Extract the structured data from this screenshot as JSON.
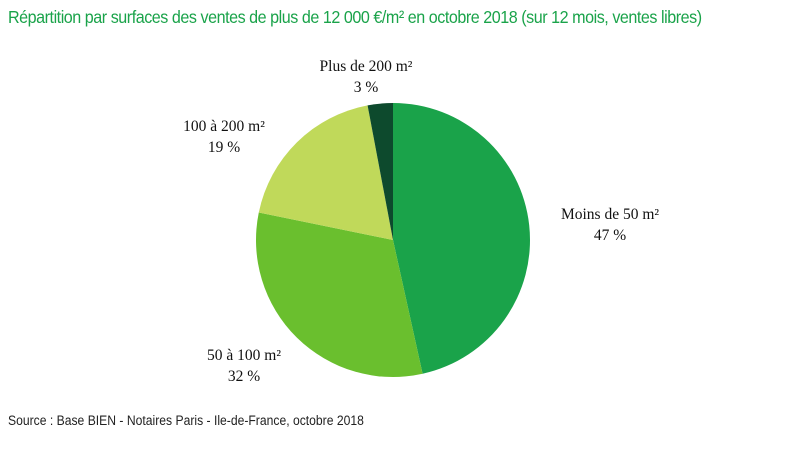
{
  "title": "Répartition par surfaces des ventes de plus de 12 000 €/m² en octobre 2018 (sur 12 mois, ventes libres)",
  "source": "Source : Base BIEN - Notaires Paris - Ile-de-France, octobre 2018",
  "chart_data": {
    "type": "pie",
    "slices": [
      {
        "label": "Moins de 50 m²",
        "value": 47,
        "value_label": "47 %",
        "color": "#1aa34a"
      },
      {
        "label": "50 à 100 m²",
        "value": 32,
        "value_label": "32 %",
        "color": "#6abf2e"
      },
      {
        "label": "100 à 200 m²",
        "value": 19,
        "value_label": "19 %",
        "color": "#c0d95a"
      },
      {
        "label": "Plus de 200 m²",
        "value": 3,
        "value_label": "3 %",
        "color": "#0d4a2d"
      }
    ]
  }
}
